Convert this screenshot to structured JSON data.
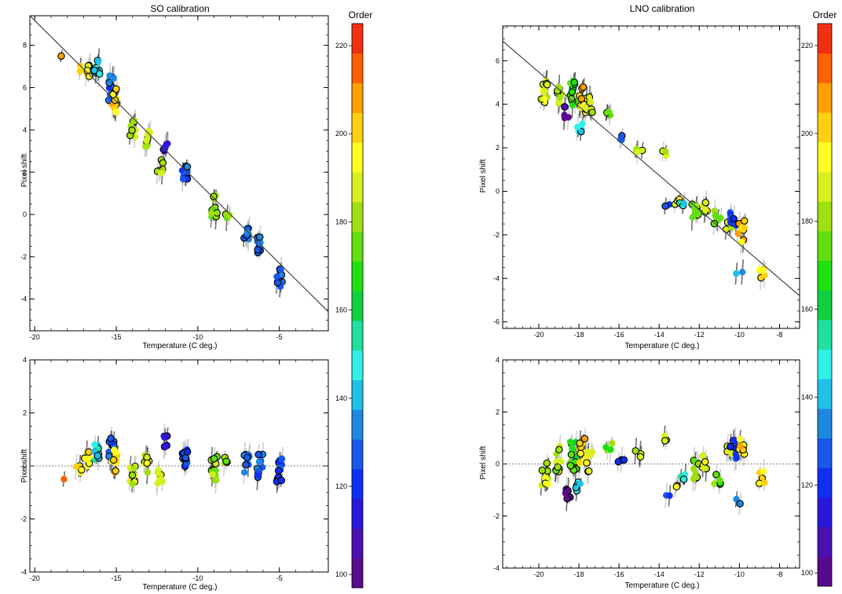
{
  "chart_data": [
    {
      "type": "scatter",
      "title": "SO calibration",
      "xlabel": "Temperature (C deg.)",
      "ylabel": "Pixel shift",
      "xlim": [
        -20.3,
        -2.0
      ],
      "ylim": [
        -5.5,
        9.4
      ],
      "xticks": [
        -20,
        -15,
        -10,
        -5
      ],
      "yticks": [
        -4,
        -2,
        0,
        2,
        4,
        6,
        8
      ],
      "fit_line": {
        "x": [
          -20.3,
          -2.0
        ],
        "y": [
          9.4,
          -4.6
        ]
      },
      "clusters": [
        {
          "x": -18.2,
          "y": 7.45,
          "order": 212,
          "n": 1,
          "spread": 0.05
        },
        {
          "x": -17.3,
          "y": 7.0,
          "order": 200,
          "n": 4,
          "spread": 0.25
        },
        {
          "x": -16.8,
          "y": 6.8,
          "order": 195,
          "n": 8,
          "spread": 0.3
        },
        {
          "x": -16.2,
          "y": 6.9,
          "order": 145,
          "n": 10,
          "spread": 0.45
        },
        {
          "x": -15.3,
          "y": 6.0,
          "order": 130,
          "n": 14,
          "spread": 0.6
        },
        {
          "x": -15.1,
          "y": 5.4,
          "order": 200,
          "n": 12,
          "spread": 0.6
        },
        {
          "x": -14.0,
          "y": 4.05,
          "order": 185,
          "n": 10,
          "spread": 0.4
        },
        {
          "x": -13.1,
          "y": 3.6,
          "order": 185,
          "n": 10,
          "spread": 0.45
        },
        {
          "x": -12.0,
          "y": 3.2,
          "order": 110,
          "n": 6,
          "spread": 0.25
        },
        {
          "x": -12.3,
          "y": 2.3,
          "order": 185,
          "n": 8,
          "spread": 0.35
        },
        {
          "x": -10.8,
          "y": 2.0,
          "order": 125,
          "n": 14,
          "spread": 0.35
        },
        {
          "x": -9.0,
          "y": 0.4,
          "order": 180,
          "n": 14,
          "spread": 0.55
        },
        {
          "x": -8.2,
          "y": -0.1,
          "order": 180,
          "n": 4,
          "spread": 0.15
        },
        {
          "x": -7.0,
          "y": -0.9,
          "order": 130,
          "n": 10,
          "spread": 0.4
        },
        {
          "x": -6.2,
          "y": -1.4,
          "order": 130,
          "n": 10,
          "spread": 0.45
        },
        {
          "x": -5.0,
          "y": -3.0,
          "order": 125,
          "n": 14,
          "spread": 0.45
        }
      ]
    },
    {
      "type": "scatter",
      "xlabel": "Temperature (C deg.)",
      "ylabel": "Pixel shift",
      "xlim": [
        -20.3,
        -2.0
      ],
      "ylim": [
        -4.0,
        4.0
      ],
      "xticks": [
        -20,
        -15,
        -10,
        -5
      ],
      "yticks": [
        -4,
        -2,
        0,
        2,
        4
      ],
      "zero_line": 0,
      "clusters": [
        {
          "x": -18.2,
          "y": -0.5,
          "order": 212,
          "n": 1,
          "spread": 0.05
        },
        {
          "x": -17.3,
          "y": 0.0,
          "order": 200,
          "n": 4,
          "spread": 0.25
        },
        {
          "x": -16.8,
          "y": 0.25,
          "order": 195,
          "n": 8,
          "spread": 0.3
        },
        {
          "x": -16.2,
          "y": 0.55,
          "order": 145,
          "n": 10,
          "spread": 0.35
        },
        {
          "x": -15.3,
          "y": 0.6,
          "order": 130,
          "n": 14,
          "spread": 0.45
        },
        {
          "x": -15.1,
          "y": 0.2,
          "order": 200,
          "n": 12,
          "spread": 0.45
        },
        {
          "x": -14.0,
          "y": -0.35,
          "order": 185,
          "n": 10,
          "spread": 0.35
        },
        {
          "x": -13.1,
          "y": 0.15,
          "order": 185,
          "n": 10,
          "spread": 0.4
        },
        {
          "x": -12.0,
          "y": 0.9,
          "order": 110,
          "n": 6,
          "spread": 0.3
        },
        {
          "x": -12.3,
          "y": -0.4,
          "order": 185,
          "n": 8,
          "spread": 0.35
        },
        {
          "x": -10.8,
          "y": 0.2,
          "order": 125,
          "n": 14,
          "spread": 0.45
        },
        {
          "x": -9.0,
          "y": -0.1,
          "order": 180,
          "n": 14,
          "spread": 0.45
        },
        {
          "x": -8.2,
          "y": 0.2,
          "order": 180,
          "n": 4,
          "spread": 0.15
        },
        {
          "x": -7.0,
          "y": 0.1,
          "order": 130,
          "n": 10,
          "spread": 0.35
        },
        {
          "x": -6.2,
          "y": 0.0,
          "order": 130,
          "n": 10,
          "spread": 0.45
        },
        {
          "x": -5.0,
          "y": -0.2,
          "order": 125,
          "n": 14,
          "spread": 0.5
        }
      ]
    },
    {
      "type": "scatter",
      "title": "LNO calibration",
      "xlabel": "Temperature (C deg.)",
      "ylabel": "Pixel shift",
      "xlim": [
        -21.8,
        -7.0
      ],
      "ylim": [
        -6.3,
        7.6
      ],
      "xticks": [
        -20,
        -18,
        -16,
        -14,
        -12,
        -10,
        -8
      ],
      "yticks": [
        -6,
        -4,
        -2,
        0,
        2,
        4,
        6
      ],
      "fit_line": {
        "x": [
          -21.8,
          -7.0
        ],
        "y": [
          6.9,
          -4.8
        ]
      },
      "clusters": [
        {
          "x": -19.7,
          "y": 4.6,
          "order": 190,
          "n": 12,
          "spread": 0.55
        },
        {
          "x": -19.0,
          "y": 4.4,
          "order": 180,
          "n": 10,
          "spread": 0.6
        },
        {
          "x": -18.6,
          "y": 3.7,
          "order": 100,
          "n": 6,
          "spread": 0.35
        },
        {
          "x": -18.3,
          "y": 4.5,
          "order": 170,
          "n": 14,
          "spread": 0.6
        },
        {
          "x": -18.0,
          "y": 3.0,
          "order": 145,
          "n": 5,
          "spread": 0.3
        },
        {
          "x": -17.8,
          "y": 4.3,
          "order": 200,
          "n": 14,
          "spread": 0.55
        },
        {
          "x": -17.5,
          "y": 4.0,
          "order": 190,
          "n": 8,
          "spread": 0.45
        },
        {
          "x": -16.5,
          "y": 3.5,
          "order": 175,
          "n": 5,
          "spread": 0.2
        },
        {
          "x": -15.9,
          "y": 2.5,
          "order": 125,
          "n": 3,
          "spread": 0.15
        },
        {
          "x": -15.0,
          "y": 1.9,
          "order": 185,
          "n": 4,
          "spread": 0.15
        },
        {
          "x": -13.8,
          "y": 1.7,
          "order": 185,
          "n": 3,
          "spread": 0.15
        },
        {
          "x": -13.6,
          "y": -0.6,
          "order": 125,
          "n": 2,
          "spread": 0.1
        },
        {
          "x": -13.1,
          "y": -0.5,
          "order": 195,
          "n": 3,
          "spread": 0.15
        },
        {
          "x": -12.8,
          "y": -0.6,
          "order": 145,
          "n": 3,
          "spread": 0.15
        },
        {
          "x": -12.2,
          "y": -0.8,
          "order": 180,
          "n": 10,
          "spread": 0.4
        },
        {
          "x": -11.7,
          "y": -0.7,
          "order": 190,
          "n": 6,
          "spread": 0.3
        },
        {
          "x": -11.1,
          "y": -1.2,
          "order": 175,
          "n": 5,
          "spread": 0.3
        },
        {
          "x": -10.5,
          "y": -1.6,
          "order": 185,
          "n": 4,
          "spread": 0.3
        },
        {
          "x": -10.3,
          "y": -1.3,
          "order": 125,
          "n": 8,
          "spread": 0.45
        },
        {
          "x": -9.9,
          "y": -1.9,
          "order": 200,
          "n": 12,
          "spread": 0.55
        },
        {
          "x": -10.0,
          "y": -3.8,
          "order": 140,
          "n": 2,
          "spread": 0.1
        },
        {
          "x": -8.9,
          "y": -3.8,
          "order": 200,
          "n": 5,
          "spread": 0.25
        }
      ]
    },
    {
      "type": "scatter",
      "xlabel": "Temperature (C deg.)",
      "ylabel": "Pixel shift",
      "xlim": [
        -21.8,
        -7.0
      ],
      "ylim": [
        -4.0,
        4.0
      ],
      "xticks": [
        -20,
        -18,
        -16,
        -14,
        -12,
        -10,
        -8
      ],
      "yticks": [
        -4,
        -2,
        0,
        2,
        4
      ],
      "zero_line": 0,
      "clusters": [
        {
          "x": -19.7,
          "y": -0.4,
          "order": 190,
          "n": 12,
          "spread": 0.45
        },
        {
          "x": -19.0,
          "y": 0.2,
          "order": 180,
          "n": 10,
          "spread": 0.5
        },
        {
          "x": -18.6,
          "y": -1.1,
          "order": 100,
          "n": 6,
          "spread": 0.3
        },
        {
          "x": -18.3,
          "y": 0.3,
          "order": 170,
          "n": 14,
          "spread": 0.55
        },
        {
          "x": -18.0,
          "y": -0.9,
          "order": 145,
          "n": 5,
          "spread": 0.25
        },
        {
          "x": -17.8,
          "y": 0.5,
          "order": 200,
          "n": 14,
          "spread": 0.5
        },
        {
          "x": -17.5,
          "y": 0.1,
          "order": 190,
          "n": 8,
          "spread": 0.4
        },
        {
          "x": -16.5,
          "y": 0.6,
          "order": 175,
          "n": 4,
          "spread": 0.2
        },
        {
          "x": -15.9,
          "y": 0.2,
          "order": 125,
          "n": 3,
          "spread": 0.15
        },
        {
          "x": -15.0,
          "y": 0.4,
          "order": 185,
          "n": 4,
          "spread": 0.15
        },
        {
          "x": -13.8,
          "y": 0.95,
          "order": 185,
          "n": 3,
          "spread": 0.15
        },
        {
          "x": -13.6,
          "y": -1.2,
          "order": 125,
          "n": 2,
          "spread": 0.1
        },
        {
          "x": -13.1,
          "y": -0.7,
          "order": 195,
          "n": 3,
          "spread": 0.2
        },
        {
          "x": -12.8,
          "y": -0.5,
          "order": 145,
          "n": 3,
          "spread": 0.15
        },
        {
          "x": -12.2,
          "y": -0.2,
          "order": 180,
          "n": 10,
          "spread": 0.4
        },
        {
          "x": -11.7,
          "y": 0.1,
          "order": 190,
          "n": 6,
          "spread": 0.3
        },
        {
          "x": -11.1,
          "y": -0.5,
          "order": 175,
          "n": 5,
          "spread": 0.3
        },
        {
          "x": -10.5,
          "y": 0.4,
          "order": 185,
          "n": 4,
          "spread": 0.3
        },
        {
          "x": -10.3,
          "y": 0.6,
          "order": 125,
          "n": 8,
          "spread": 0.4
        },
        {
          "x": -9.9,
          "y": 0.5,
          "order": 200,
          "n": 12,
          "spread": 0.5
        },
        {
          "x": -10.0,
          "y": -1.45,
          "order": 140,
          "n": 2,
          "spread": 0.1
        },
        {
          "x": -8.9,
          "y": -0.5,
          "order": 200,
          "n": 5,
          "spread": 0.25
        }
      ]
    }
  ],
  "colorbars": [
    {
      "label": "Order",
      "min": 97,
      "max": 225,
      "ticks": [
        100,
        120,
        140,
        160,
        180,
        200,
        220
      ]
    },
    {
      "label": "Order",
      "min": 97,
      "max": 225,
      "ticks": [
        100,
        120,
        140,
        160,
        180,
        200,
        220
      ]
    }
  ],
  "colormap": [
    "#5a0a8c",
    "#4a10b0",
    "#2a18d8",
    "#1030f0",
    "#1858e8",
    "#1e88e0",
    "#20c0e8",
    "#30f0e8",
    "#20e0a0",
    "#10d040",
    "#20e010",
    "#60e010",
    "#a0e010",
    "#d8f020",
    "#ffff20",
    "#ffd010",
    "#ffa000",
    "#ff6000",
    "#f03010"
  ]
}
